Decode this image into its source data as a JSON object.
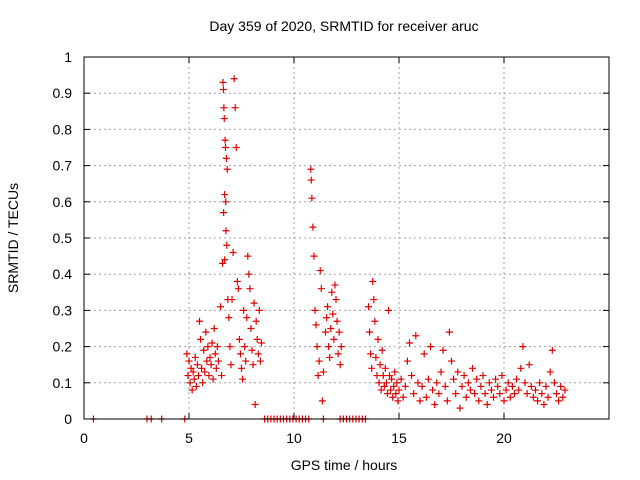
{
  "chart_data": {
    "type": "scatter",
    "title": "Day 359 of 2020, SRMTID for receiver aruc",
    "xlabel": "GPS time / hours",
    "ylabel": "SRMTID / TECUs",
    "xlim": [
      0,
      25
    ],
    "ylim": [
      0,
      1
    ],
    "xticks": [
      0,
      5,
      10,
      15,
      20
    ],
    "yticks": [
      0,
      0.1,
      0.2,
      0.3,
      0.4,
      0.5,
      0.6,
      0.7,
      0.8,
      0.9,
      1
    ],
    "xtick_labels": [
      "0",
      "5",
      "10",
      "15",
      "20"
    ],
    "ytick_labels": [
      "0",
      "0.1",
      "0.2",
      "0.3",
      "0.4",
      "0.5",
      "0.6",
      "0.7",
      "0.8",
      "0.9",
      "1"
    ],
    "grid": true,
    "marker": "+",
    "colors": {
      "series": "#e00000"
    },
    "series": [
      {
        "name": "SRMTID",
        "points": [
          [
            0.45,
            0.0
          ],
          [
            3.0,
            0.0
          ],
          [
            3.2,
            0.0
          ],
          [
            3.7,
            0.0
          ],
          [
            4.8,
            0.0
          ],
          [
            8.6,
            0.0
          ],
          [
            8.75,
            0.0
          ],
          [
            8.9,
            0.0
          ],
          [
            9.05,
            0.0
          ],
          [
            9.2,
            0.0
          ],
          [
            9.35,
            0.0
          ],
          [
            9.5,
            0.0
          ],
          [
            9.65,
            0.0
          ],
          [
            9.8,
            0.0
          ],
          [
            9.95,
            0.0
          ],
          [
            10.1,
            0.0
          ],
          [
            10.25,
            0.0
          ],
          [
            10.4,
            0.0
          ],
          [
            10.55,
            0.0
          ],
          [
            10.7,
            0.0
          ],
          [
            11.4,
            0.0
          ],
          [
            12.2,
            0.0
          ],
          [
            12.35,
            0.0
          ],
          [
            12.5,
            0.0
          ],
          [
            12.65,
            0.0
          ],
          [
            12.8,
            0.0
          ],
          [
            12.95,
            0.0
          ],
          [
            13.1,
            0.0
          ],
          [
            13.25,
            0.0
          ],
          [
            13.4,
            0.0
          ],
          [
            4.9,
            0.18
          ],
          [
            4.95,
            0.12
          ],
          [
            5.0,
            0.16
          ],
          [
            5.05,
            0.1
          ],
          [
            5.1,
            0.14
          ],
          [
            5.15,
            0.08
          ],
          [
            5.2,
            0.13
          ],
          [
            5.25,
            0.11
          ],
          [
            5.3,
            0.17
          ],
          [
            5.35,
            0.09
          ],
          [
            5.4,
            0.15
          ],
          [
            5.45,
            0.12
          ],
          [
            5.5,
            0.27
          ],
          [
            5.55,
            0.22
          ],
          [
            5.6,
            0.14
          ],
          [
            5.65,
            0.1
          ],
          [
            5.7,
            0.19
          ],
          [
            5.75,
            0.13
          ],
          [
            5.8,
            0.24
          ],
          [
            5.85,
            0.16
          ],
          [
            5.9,
            0.2
          ],
          [
            5.95,
            0.12
          ],
          [
            6.0,
            0.17
          ],
          [
            6.05,
            0.15
          ],
          [
            6.1,
            0.21
          ],
          [
            6.15,
            0.11
          ],
          [
            6.2,
            0.25
          ],
          [
            6.25,
            0.18
          ],
          [
            6.3,
            0.14
          ],
          [
            6.35,
            0.2
          ],
          [
            6.4,
            0.16
          ],
          [
            6.5,
            0.31
          ],
          [
            6.55,
            0.12
          ],
          [
            6.6,
            0.43
          ],
          [
            6.65,
            0.57
          ],
          [
            6.7,
            0.62
          ],
          [
            6.75,
            0.6
          ],
          [
            6.8,
            0.48
          ],
          [
            6.85,
            0.33
          ],
          [
            6.9,
            0.28
          ],
          [
            6.95,
            0.2
          ],
          [
            6.62,
            0.93
          ],
          [
            6.64,
            0.91
          ],
          [
            6.66,
            0.86
          ],
          [
            6.68,
            0.83
          ],
          [
            6.72,
            0.77
          ],
          [
            6.74,
            0.75
          ],
          [
            6.78,
            0.72
          ],
          [
            6.82,
            0.69
          ],
          [
            6.76,
            0.52
          ],
          [
            6.7,
            0.44
          ],
          [
            7.0,
            0.15
          ],
          [
            7.05,
            0.33
          ],
          [
            7.1,
            0.46
          ],
          [
            7.15,
            0.94
          ],
          [
            7.2,
            0.86
          ],
          [
            7.25,
            0.75
          ],
          [
            7.3,
            0.38
          ],
          [
            7.35,
            0.36
          ],
          [
            7.4,
            0.22
          ],
          [
            7.45,
            0.18
          ],
          [
            7.5,
            0.14
          ],
          [
            7.55,
            0.11
          ],
          [
            7.6,
            0.3
          ],
          [
            7.65,
            0.2
          ],
          [
            7.7,
            0.16
          ],
          [
            7.75,
            0.28
          ],
          [
            7.8,
            0.45
          ],
          [
            7.85,
            0.4
          ],
          [
            7.9,
            0.36
          ],
          [
            7.95,
            0.25
          ],
          [
            8.0,
            0.19
          ],
          [
            8.05,
            0.15
          ],
          [
            8.1,
            0.32
          ],
          [
            8.15,
            0.04
          ],
          [
            8.2,
            0.27
          ],
          [
            8.25,
            0.22
          ],
          [
            8.3,
            0.18
          ],
          [
            8.35,
            0.3
          ],
          [
            8.4,
            0.16
          ],
          [
            8.45,
            0.21
          ],
          [
            10.8,
            0.69
          ],
          [
            10.82,
            0.66
          ],
          [
            10.85,
            0.61
          ],
          [
            10.9,
            0.53
          ],
          [
            10.95,
            0.45
          ],
          [
            11.0,
            0.3
          ],
          [
            11.05,
            0.26
          ],
          [
            11.1,
            0.2
          ],
          [
            11.15,
            0.12
          ],
          [
            11.2,
            0.16
          ],
          [
            11.25,
            0.41
          ],
          [
            11.3,
            0.36
          ],
          [
            11.35,
            0.05
          ],
          [
            11.4,
            0.13
          ],
          [
            11.5,
            0.24
          ],
          [
            11.55,
            0.28
          ],
          [
            11.6,
            0.31
          ],
          [
            11.65,
            0.2
          ],
          [
            11.7,
            0.17
          ],
          [
            11.75,
            0.25
          ],
          [
            11.8,
            0.35
          ],
          [
            11.85,
            0.29
          ],
          [
            11.9,
            0.22
          ],
          [
            11.95,
            0.37
          ],
          [
            12.0,
            0.33
          ],
          [
            12.05,
            0.27
          ],
          [
            12.1,
            0.18
          ],
          [
            12.15,
            0.24
          ],
          [
            12.2,
            0.15
          ],
          [
            12.25,
            0.2
          ],
          [
            13.55,
            0.31
          ],
          [
            13.6,
            0.24
          ],
          [
            13.65,
            0.18
          ],
          [
            13.7,
            0.14
          ],
          [
            13.75,
            0.38
          ],
          [
            13.8,
            0.33
          ],
          [
            13.85,
            0.27
          ],
          [
            13.9,
            0.17
          ],
          [
            13.95,
            0.12
          ],
          [
            14.0,
            0.22
          ],
          [
            14.05,
            0.1
          ],
          [
            14.1,
            0.15
          ],
          [
            14.15,
            0.08
          ],
          [
            14.2,
            0.19
          ],
          [
            14.25,
            0.12
          ],
          [
            14.3,
            0.09
          ],
          [
            14.35,
            0.14
          ],
          [
            14.4,
            0.1
          ],
          [
            14.45,
            0.07
          ],
          [
            14.5,
            0.3
          ],
          [
            14.55,
            0.12
          ],
          [
            14.6,
            0.08
          ],
          [
            14.65,
            0.11
          ],
          [
            14.7,
            0.06
          ],
          [
            14.75,
            0.09
          ],
          [
            14.8,
            0.13
          ],
          [
            14.85,
            0.07
          ],
          [
            14.9,
            0.1
          ],
          [
            14.95,
            0.05
          ],
          [
            15.0,
            0.08
          ],
          [
            15.1,
            0.11
          ],
          [
            15.2,
            0.06
          ],
          [
            15.3,
            0.09
          ],
          [
            15.4,
            0.16
          ],
          [
            15.5,
            0.21
          ],
          [
            15.6,
            0.12
          ],
          [
            15.7,
            0.07
          ],
          [
            15.8,
            0.23
          ],
          [
            15.9,
            0.1
          ],
          [
            16.0,
            0.05
          ],
          [
            16.1,
            0.09
          ],
          [
            16.2,
            0.18
          ],
          [
            16.3,
            0.06
          ],
          [
            16.4,
            0.11
          ],
          [
            16.5,
            0.2
          ],
          [
            16.6,
            0.08
          ],
          [
            16.7,
            0.04
          ],
          [
            16.8,
            0.1
          ],
          [
            16.9,
            0.07
          ],
          [
            17.0,
            0.13
          ],
          [
            17.1,
            0.19
          ],
          [
            17.2,
            0.09
          ],
          [
            17.3,
            0.05
          ],
          [
            17.4,
            0.24
          ],
          [
            17.5,
            0.16
          ],
          [
            17.6,
            0.11
          ],
          [
            17.7,
            0.07
          ],
          [
            17.8,
            0.13
          ],
          [
            17.9,
            0.03
          ],
          [
            18.0,
            0.09
          ],
          [
            18.1,
            0.12
          ],
          [
            18.2,
            0.06
          ],
          [
            18.3,
            0.1
          ],
          [
            18.4,
            0.08
          ],
          [
            18.5,
            0.14
          ],
          [
            18.6,
            0.07
          ],
          [
            18.7,
            0.11
          ],
          [
            18.8,
            0.05
          ],
          [
            18.9,
            0.09
          ],
          [
            19.0,
            0.12
          ],
          [
            19.1,
            0.07
          ],
          [
            19.2,
            0.04
          ],
          [
            19.3,
            0.1
          ],
          [
            19.4,
            0.08
          ],
          [
            19.5,
            0.06
          ],
          [
            19.6,
            0.11
          ],
          [
            19.7,
            0.09
          ],
          [
            19.8,
            0.07
          ],
          [
            19.9,
            0.12
          ],
          [
            20.0,
            0.05
          ],
          [
            20.1,
            0.08
          ],
          [
            20.2,
            0.1
          ],
          [
            20.3,
            0.06
          ],
          [
            20.4,
            0.09
          ],
          [
            20.5,
            0.07
          ],
          [
            20.6,
            0.11
          ],
          [
            20.7,
            0.08
          ],
          [
            20.8,
            0.14
          ],
          [
            20.9,
            0.2
          ],
          [
            21.0,
            0.1
          ],
          [
            21.1,
            0.07
          ],
          [
            21.2,
            0.15
          ],
          [
            21.3,
            0.09
          ],
          [
            21.4,
            0.06
          ],
          [
            21.5,
            0.08
          ],
          [
            21.6,
            0.05
          ],
          [
            21.7,
            0.1
          ],
          [
            21.8,
            0.07
          ],
          [
            21.9,
            0.04
          ],
          [
            22.0,
            0.09
          ],
          [
            22.1,
            0.06
          ],
          [
            22.2,
            0.13
          ],
          [
            22.3,
            0.19
          ],
          [
            22.4,
            0.1
          ],
          [
            22.5,
            0.07
          ],
          [
            22.6,
            0.05
          ],
          [
            22.7,
            0.09
          ],
          [
            22.8,
            0.06
          ],
          [
            22.9,
            0.08
          ]
        ]
      }
    ]
  }
}
